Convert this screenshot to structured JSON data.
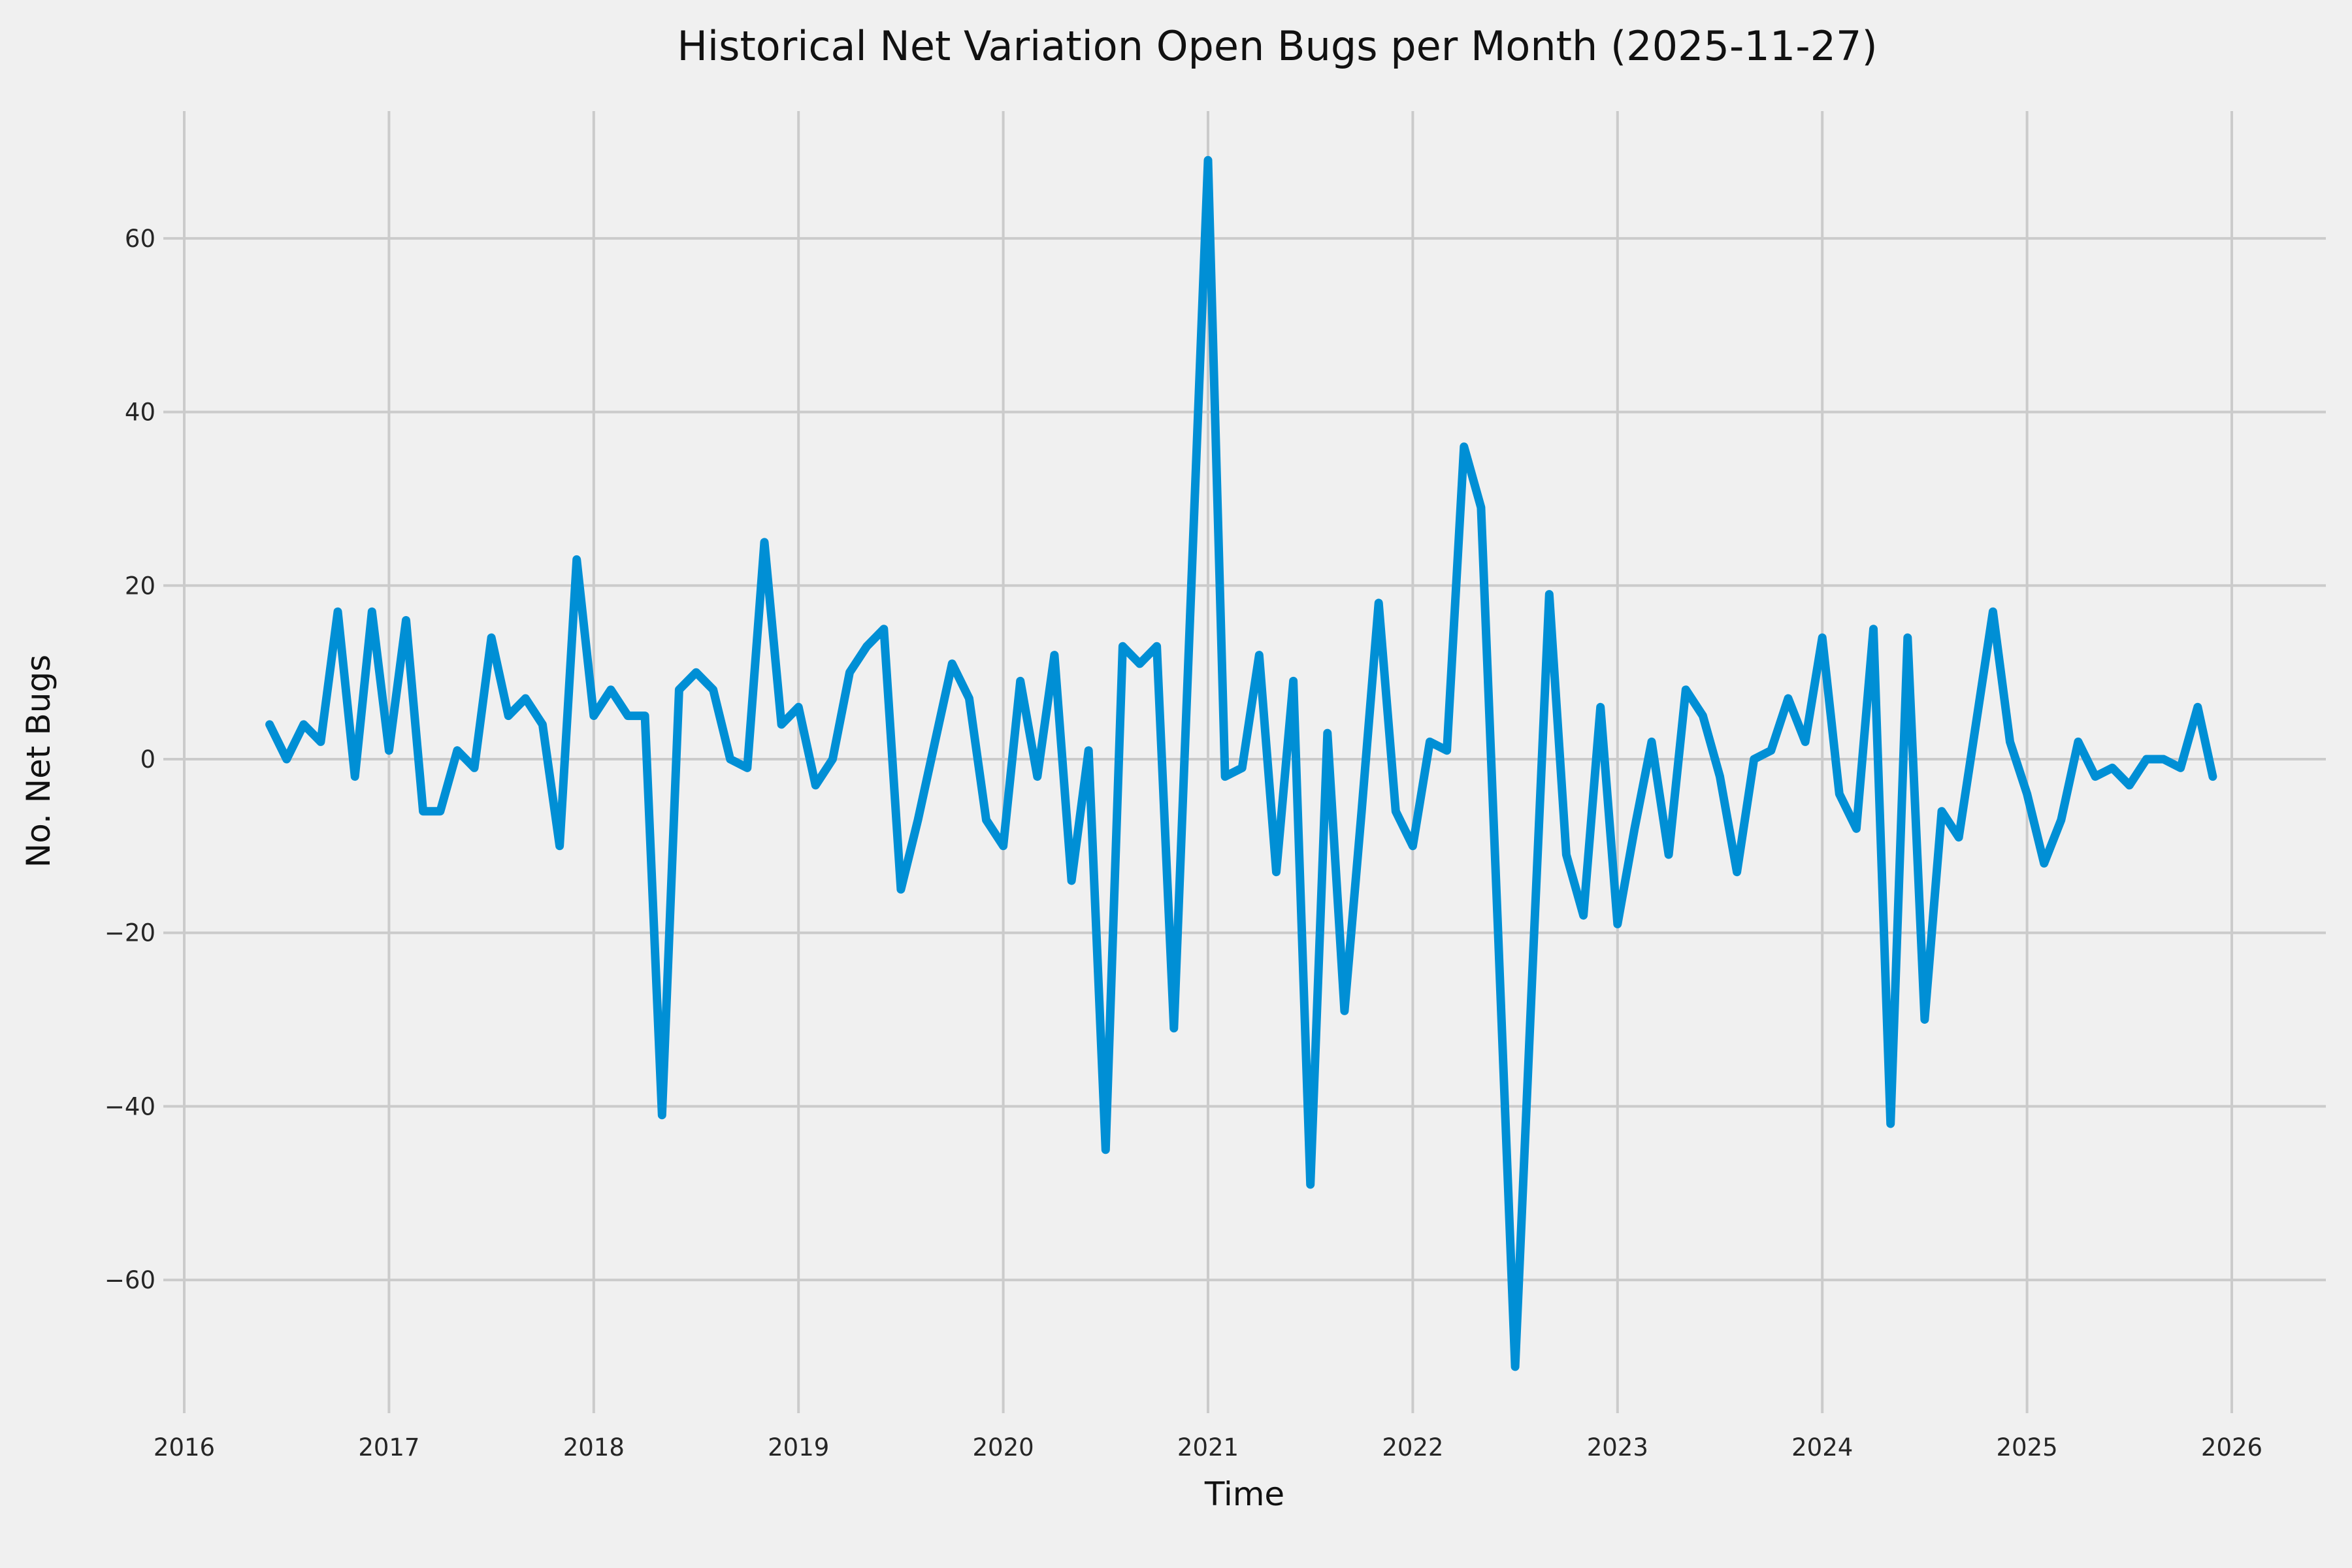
{
  "title": "Historical Net Variation Open Bugs per Month (2025-11-27)",
  "chart_data": {
    "type": "line",
    "title": "Historical Net Variation Open Bugs per Month (2025-11-27)",
    "xlabel": "Time",
    "ylabel": "No. Net Bugs",
    "legend": false,
    "grid": true,
    "style": {
      "background_color": "#f0f0f0",
      "grid_color": "#cbcbcb",
      "line_color": "#008fd5",
      "text_color": "#262626"
    },
    "xlim": [
      2015.9,
      2026.46
    ],
    "ylim": [
      -75,
      75
    ],
    "x_ticks": [
      2016,
      2017,
      2018,
      2019,
      2020,
      2021,
      2022,
      2023,
      2024,
      2025,
      2026
    ],
    "y_ticks": [
      {
        "value": 60,
        "label": "60"
      },
      {
        "value": 40,
        "label": "40"
      },
      {
        "value": 20,
        "label": "20"
      },
      {
        "value": 0,
        "label": "0"
      },
      {
        "value": -20,
        "label": "−20"
      },
      {
        "value": -40,
        "label": "−40"
      },
      {
        "value": -60,
        "label": "−60"
      }
    ],
    "series": [
      {
        "name": "net-open-bugs-per-month",
        "points": [
          {
            "date": "2016-05",
            "value": 4
          },
          {
            "date": "2016-06",
            "value": 0
          },
          {
            "date": "2016-07",
            "value": 4
          },
          {
            "date": "2016-08",
            "value": 2
          },
          {
            "date": "2016-09",
            "value": 17
          },
          {
            "date": "2016-10",
            "value": -2
          },
          {
            "date": "2016-11",
            "value": 17
          },
          {
            "date": "2016-12",
            "value": 1
          },
          {
            "date": "2017-01",
            "value": 16
          },
          {
            "date": "2017-02",
            "value": -6
          },
          {
            "date": "2017-03",
            "value": -6
          },
          {
            "date": "2017-04",
            "value": 1
          },
          {
            "date": "2017-05",
            "value": -1
          },
          {
            "date": "2017-06",
            "value": 14
          },
          {
            "date": "2017-07",
            "value": 5
          },
          {
            "date": "2017-08",
            "value": 7
          },
          {
            "date": "2017-09",
            "value": 4
          },
          {
            "date": "2017-10",
            "value": -10
          },
          {
            "date": "2017-11",
            "value": 23
          },
          {
            "date": "2017-12",
            "value": 5
          },
          {
            "date": "2018-01",
            "value": 8
          },
          {
            "date": "2018-02",
            "value": 5
          },
          {
            "date": "2018-03",
            "value": 5
          },
          {
            "date": "2018-04",
            "value": -41
          },
          {
            "date": "2018-05",
            "value": 8
          },
          {
            "date": "2018-06",
            "value": 10
          },
          {
            "date": "2018-07",
            "value": 8
          },
          {
            "date": "2018-08",
            "value": 0
          },
          {
            "date": "2018-09",
            "value": -1
          },
          {
            "date": "2018-10",
            "value": 25
          },
          {
            "date": "2018-11",
            "value": 4
          },
          {
            "date": "2018-12",
            "value": 6
          },
          {
            "date": "2019-01",
            "value": -3
          },
          {
            "date": "2019-02",
            "value": 0
          },
          {
            "date": "2019-03",
            "value": 10
          },
          {
            "date": "2019-04",
            "value": 13
          },
          {
            "date": "2019-05",
            "value": 15
          },
          {
            "date": "2019-06",
            "value": -15
          },
          {
            "date": "2019-07",
            "value": -7
          },
          {
            "date": "2019-08",
            "value": 2
          },
          {
            "date": "2019-09",
            "value": 11
          },
          {
            "date": "2019-10",
            "value": 7
          },
          {
            "date": "2019-11",
            "value": -7
          },
          {
            "date": "2019-12",
            "value": -10
          },
          {
            "date": "2020-01",
            "value": 9
          },
          {
            "date": "2020-02",
            "value": -2
          },
          {
            "date": "2020-03",
            "value": 12
          },
          {
            "date": "2020-04",
            "value": -14
          },
          {
            "date": "2020-05",
            "value": 1
          },
          {
            "date": "2020-06",
            "value": -45
          },
          {
            "date": "2020-07",
            "value": 13
          },
          {
            "date": "2020-08",
            "value": 11
          },
          {
            "date": "2020-09",
            "value": 13
          },
          {
            "date": "2020-10",
            "value": -31
          },
          {
            "date": "2020-11",
            "value": 19
          },
          {
            "date": "2020-12",
            "value": 69
          },
          {
            "date": "2021-01",
            "value": -2
          },
          {
            "date": "2021-02",
            "value": -1
          },
          {
            "date": "2021-03",
            "value": 12
          },
          {
            "date": "2021-04",
            "value": -13
          },
          {
            "date": "2021-05",
            "value": 9
          },
          {
            "date": "2021-06",
            "value": -49
          },
          {
            "date": "2021-07",
            "value": 3
          },
          {
            "date": "2021-08",
            "value": -29
          },
          {
            "date": "2021-09",
            "value": -6
          },
          {
            "date": "2021-10",
            "value": 18
          },
          {
            "date": "2021-11",
            "value": -6
          },
          {
            "date": "2021-12",
            "value": -10
          },
          {
            "date": "2022-01",
            "value": 2
          },
          {
            "date": "2022-02",
            "value": 1
          },
          {
            "date": "2022-03",
            "value": 36
          },
          {
            "date": "2022-04",
            "value": 29
          },
          {
            "date": "2022-05",
            "value": -20
          },
          {
            "date": "2022-06",
            "value": -70
          },
          {
            "date": "2022-07",
            "value": -25
          },
          {
            "date": "2022-08",
            "value": 19
          },
          {
            "date": "2022-09",
            "value": -11
          },
          {
            "date": "2022-10",
            "value": -18
          },
          {
            "date": "2022-11",
            "value": 6
          },
          {
            "date": "2022-12",
            "value": -19
          },
          {
            "date": "2023-01",
            "value": -8
          },
          {
            "date": "2023-02",
            "value": 2
          },
          {
            "date": "2023-03",
            "value": -11
          },
          {
            "date": "2023-04",
            "value": 8
          },
          {
            "date": "2023-05",
            "value": 5
          },
          {
            "date": "2023-06",
            "value": -2
          },
          {
            "date": "2023-07",
            "value": -13
          },
          {
            "date": "2023-08",
            "value": 0
          },
          {
            "date": "2023-09",
            "value": 1
          },
          {
            "date": "2023-10",
            "value": 7
          },
          {
            "date": "2023-11",
            "value": 2
          },
          {
            "date": "2023-12",
            "value": 14
          },
          {
            "date": "2024-01",
            "value": -4
          },
          {
            "date": "2024-02",
            "value": -8
          },
          {
            "date": "2024-03",
            "value": 15
          },
          {
            "date": "2024-04",
            "value": -42
          },
          {
            "date": "2024-05",
            "value": 14
          },
          {
            "date": "2024-06",
            "value": -30
          },
          {
            "date": "2024-07",
            "value": -6
          },
          {
            "date": "2024-08",
            "value": -9
          },
          {
            "date": "2024-09",
            "value": 4
          },
          {
            "date": "2024-10",
            "value": 17
          },
          {
            "date": "2024-11",
            "value": 2
          },
          {
            "date": "2024-12",
            "value": -4
          },
          {
            "date": "2025-01",
            "value": -12
          },
          {
            "date": "2025-02",
            "value": -7
          },
          {
            "date": "2025-03",
            "value": 2
          },
          {
            "date": "2025-04",
            "value": -2
          },
          {
            "date": "2025-05",
            "value": -1
          },
          {
            "date": "2025-06",
            "value": -3
          },
          {
            "date": "2025-07",
            "value": 0
          },
          {
            "date": "2025-08",
            "value": 0
          },
          {
            "date": "2025-09",
            "value": -1
          },
          {
            "date": "2025-10",
            "value": 6
          },
          {
            "date": "2025-11-27",
            "value": -2
          }
        ]
      }
    ]
  }
}
